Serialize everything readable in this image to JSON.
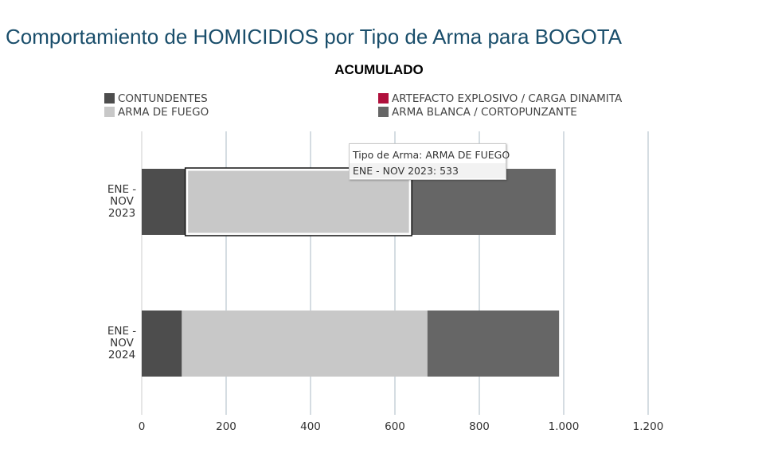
{
  "page": {
    "title": "Comportamiento de HOMICIDIOS por Tipo de Arma para BOGOTA",
    "subtitle": "ACUMULADO"
  },
  "legend": [
    {
      "label": "CONTUNDENTES",
      "color": "#4d4d4d"
    },
    {
      "label": "ARTEFACTO EXPLOSIVO / CARGA DINAMITA",
      "color": "#b0103c"
    },
    {
      "label": "ARMA DE FUEGO",
      "color": "#c8c8c8"
    },
    {
      "label": "ARMA BLANCA / CORTOPUNZANTE",
      "color": "#666666"
    }
  ],
  "tooltip": {
    "line1": "Tipo de Arma: ARMA DE FUEGO",
    "line2": "ENE - NOV 2023: 533"
  },
  "chart_data": {
    "type": "bar",
    "orientation": "horizontal",
    "stacked": true,
    "categories": [
      "ENE - NOV 2023",
      "ENE - NOV 2024"
    ],
    "category_lines": [
      [
        "ENE -",
        "NOV",
        "2023"
      ],
      [
        "ENE -",
        "NOV",
        "2024"
      ]
    ],
    "series": [
      {
        "name": "CONTUNDENTES",
        "color": "#4d4d4d",
        "values": [
          105,
          95
        ]
      },
      {
        "name": "ARTEFACTO EXPLOSIVO / CARGA DINAMITA",
        "color": "#b0103c",
        "values": [
          0,
          0
        ]
      },
      {
        "name": "ARMA DE FUEGO",
        "color": "#c8c8c8",
        "values": [
          533,
          582
        ]
      },
      {
        "name": "ARMA BLANCA / CORTOPUNZANTE",
        "color": "#666666",
        "values": [
          343,
          312
        ]
      }
    ],
    "xlim": [
      0,
      1200
    ],
    "xticks": [
      0,
      200,
      400,
      600,
      800,
      1000,
      1200
    ],
    "xtick_labels": [
      "0",
      "200",
      "400",
      "600",
      "800",
      "1.000",
      "1.200"
    ],
    "grid": true,
    "legend_position": "top",
    "highlighted": {
      "series": "ARMA DE FUEGO",
      "category": "ENE - NOV 2023"
    }
  }
}
